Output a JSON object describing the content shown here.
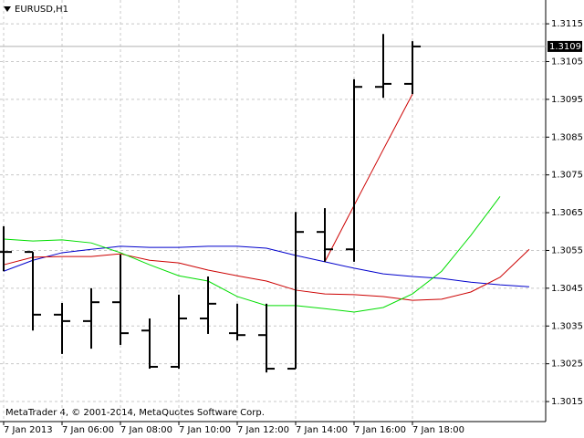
{
  "chart_data": {
    "type": "ohlc",
    "title": "EURUSD,H1",
    "annotation": "MetaTrader 4, © 2001-2014, MetaQuotes Software Corp.",
    "categories": [
      "7 Jan 2013",
      null,
      "7 Jan 06:00",
      null,
      "7 Jan 08:00",
      null,
      "7 Jan 10:00",
      null,
      "7 Jan 12:00",
      null,
      "7 Jan 14:00",
      null,
      "7 Jan 16:00",
      null,
      "7 Jan 18:00",
      null,
      null,
      null,
      null
    ],
    "ohlc": {
      "color": "#000000",
      "open": [
        1.30546,
        1.30546,
        1.3038,
        1.30363,
        1.30413,
        1.30338,
        1.30242,
        1.3037,
        1.30331,
        1.30326,
        1.30237,
        1.30599,
        1.30553,
        1.30983,
        1.30991,
        null,
        null,
        null,
        null
      ],
      "high": [
        1.30614,
        1.30546,
        1.30411,
        1.3045,
        1.30539,
        1.3037,
        1.30433,
        1.30481,
        1.30409,
        1.30409,
        1.30652,
        1.30662,
        1.31003,
        1.31123,
        1.31104,
        null,
        null,
        null,
        null
      ],
      "low": [
        1.30495,
        1.30338,
        1.30276,
        1.3029,
        1.303,
        1.30237,
        1.30237,
        1.30329,
        1.30312,
        1.30227,
        1.30237,
        1.3052,
        1.3052,
        1.30954,
        1.30964,
        null,
        null,
        null,
        null
      ],
      "close": [
        1.30546,
        1.3038,
        1.30363,
        1.30413,
        1.30331,
        1.30242,
        1.3037,
        1.30409,
        1.30326,
        1.30237,
        1.30599,
        1.30553,
        1.30983,
        1.30991,
        1.3109,
        null,
        null,
        null,
        null
      ]
    },
    "series": [
      {
        "color": "#0000cc",
        "values": [
          1.30495,
          1.30524,
          1.30544,
          1.30553,
          1.30561,
          1.30558,
          1.30558,
          1.30561,
          1.30561,
          1.30556,
          1.30537,
          1.3052,
          1.30503,
          1.30488,
          1.30481,
          1.30476,
          1.30466,
          1.30459,
          1.30454
        ]
      },
      {
        "color": "#cc0000",
        "values": [
          1.30512,
          1.30532,
          1.30534,
          1.30534,
          1.30541,
          1.30524,
          1.30517,
          1.30498,
          1.30483,
          1.30469,
          1.30445,
          1.30435,
          1.30433,
          1.30428,
          1.30418,
          1.30421,
          1.3044,
          1.30479,
          1.30553
        ]
      },
      {
        "color": "#00dd00",
        "values": [
          1.3058,
          1.30575,
          1.30578,
          1.3057,
          1.30544,
          1.30512,
          1.30483,
          1.30469,
          1.30428,
          1.30404,
          1.30404,
          1.30396,
          1.30387,
          1.30399,
          1.30435,
          1.30495,
          1.3059,
          1.30693,
          null
        ]
      },
      {
        "color": "#cc0000",
        "values": [
          null,
          null,
          null,
          null,
          null,
          null,
          null,
          null,
          null,
          null,
          null,
          1.3052,
          1.30669,
          1.30817,
          1.30964,
          null,
          null,
          null,
          null
        ]
      }
    ],
    "current_price": 1.3109,
    "ylim": [
      1.30097,
      1.31213
    ],
    "yticks": [
      1.3115,
      1.3105,
      1.3095,
      1.3085,
      1.3075,
      1.3065,
      1.3055,
      1.3045,
      1.3035,
      1.3025,
      1.3015
    ],
    "grid": true
  }
}
